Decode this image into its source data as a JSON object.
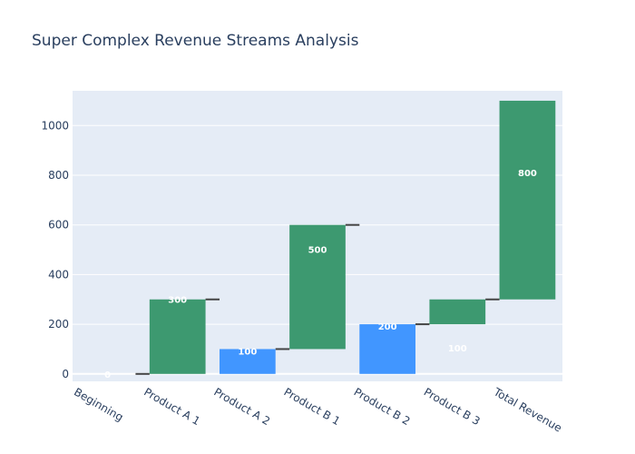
{
  "chart_data": {
    "type": "bar",
    "subtype": "waterfall",
    "title": "Super Complex Revenue Streams Analysis",
    "xlabel": "",
    "ylabel": "",
    "ylim": [
      -30,
      1140
    ],
    "yticks": [
      0,
      200,
      400,
      600,
      800,
      1000
    ],
    "categories": [
      "Beginning",
      "Product A 1",
      "Product A 2",
      "Product B 1",
      "Product B 2",
      "Product B 3",
      "Total Revenue"
    ],
    "bars": [
      {
        "base": 0,
        "end": 0,
        "label": "0"
      },
      {
        "base": 0,
        "end": 300,
        "label": "300"
      },
      {
        "base": 0,
        "end": 100,
        "label": "100"
      },
      {
        "base": 100,
        "end": 600,
        "label": "500"
      },
      {
        "base": 0,
        "end": 200,
        "label": "200"
      },
      {
        "base": 200,
        "end": 300,
        "label": "100"
      },
      {
        "base": 300,
        "end": 1100,
        "label": "800"
      }
    ],
    "connectors": [
      0,
      300,
      100,
      600,
      200,
      300
    ],
    "colors": {
      "increase": "#3d9970",
      "blue": "#4196ff",
      "plot_bg": "#e5ecf6",
      "grid": "#ffffff",
      "connector": "#444444",
      "text": "#2a3f5f"
    },
    "bar_color_keys": [
      "increase",
      "increase",
      "blue",
      "increase",
      "blue",
      "increase",
      "increase"
    ]
  }
}
